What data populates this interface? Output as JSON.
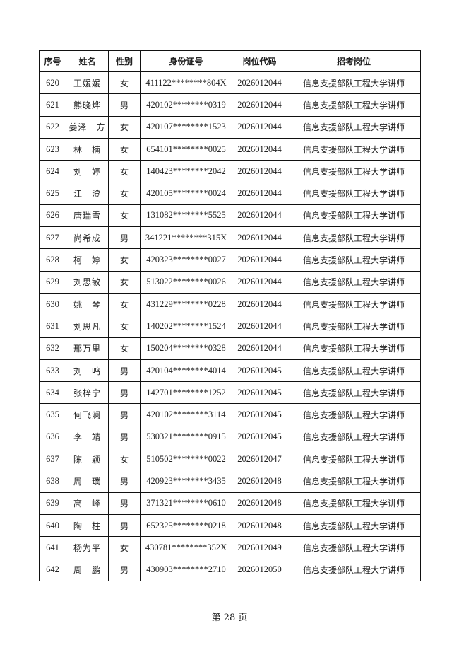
{
  "table": {
    "headers": [
      "序号",
      "姓名",
      "性别",
      "身份证号",
      "岗位代码",
      "招考岗位"
    ],
    "rows": [
      [
        "620",
        "王媛媛",
        "女",
        "411122********804X",
        "2026012044",
        "信息支援部队工程大学讲师"
      ],
      [
        "621",
        "熊晓烨",
        "男",
        "420102********0319",
        "2026012044",
        "信息支援部队工程大学讲师"
      ],
      [
        "622",
        "姜泽一方",
        "女",
        "420107********1523",
        "2026012044",
        "信息支援部队工程大学讲师"
      ],
      [
        "623",
        "林　楠",
        "女",
        "654101********0025",
        "2026012044",
        "信息支援部队工程大学讲师"
      ],
      [
        "624",
        "刘　婷",
        "女",
        "140423********2042",
        "2026012044",
        "信息支援部队工程大学讲师"
      ],
      [
        "625",
        "江　澄",
        "女",
        "420105********0024",
        "2026012044",
        "信息支援部队工程大学讲师"
      ],
      [
        "626",
        "唐瑞雪",
        "女",
        "131082********5525",
        "2026012044",
        "信息支援部队工程大学讲师"
      ],
      [
        "627",
        "尚希成",
        "男",
        "341221********315X",
        "2026012044",
        "信息支援部队工程大学讲师"
      ],
      [
        "628",
        "柯　婷",
        "女",
        "420323********0027",
        "2026012044",
        "信息支援部队工程大学讲师"
      ],
      [
        "629",
        "刘思敏",
        "女",
        "513022********0026",
        "2026012044",
        "信息支援部队工程大学讲师"
      ],
      [
        "630",
        "姚　琴",
        "女",
        "431229********0228",
        "2026012044",
        "信息支援部队工程大学讲师"
      ],
      [
        "631",
        "刘思凡",
        "女",
        "140202********1524",
        "2026012044",
        "信息支援部队工程大学讲师"
      ],
      [
        "632",
        "邢万里",
        "女",
        "150204********0328",
        "2026012044",
        "信息支援部队工程大学讲师"
      ],
      [
        "633",
        "刘　鸣",
        "男",
        "420104********4014",
        "2026012045",
        "信息支援部队工程大学讲师"
      ],
      [
        "634",
        "张梓宁",
        "男",
        "142701********1252",
        "2026012045",
        "信息支援部队工程大学讲师"
      ],
      [
        "635",
        "何飞澜",
        "男",
        "420102********3114",
        "2026012045",
        "信息支援部队工程大学讲师"
      ],
      [
        "636",
        "李　靖",
        "男",
        "530321********0915",
        "2026012045",
        "信息支援部队工程大学讲师"
      ],
      [
        "637",
        "陈　颖",
        "女",
        "510502********0022",
        "2026012047",
        "信息支援部队工程大学讲师"
      ],
      [
        "638",
        "周　璞",
        "男",
        "420923********3435",
        "2026012048",
        "信息支援部队工程大学讲师"
      ],
      [
        "639",
        "高　峰",
        "男",
        "371321********0610",
        "2026012048",
        "信息支援部队工程大学讲师"
      ],
      [
        "640",
        "陶　柱",
        "男",
        "652325********0218",
        "2026012048",
        "信息支援部队工程大学讲师"
      ],
      [
        "641",
        "杨为平",
        "女",
        "430781********352X",
        "2026012049",
        "信息支援部队工程大学讲师"
      ],
      [
        "642",
        "周　鹏",
        "男",
        "430903********2710",
        "2026012050",
        "信息支援部队工程大学讲师"
      ]
    ]
  },
  "footer": {
    "page_label": "第 28 页"
  }
}
